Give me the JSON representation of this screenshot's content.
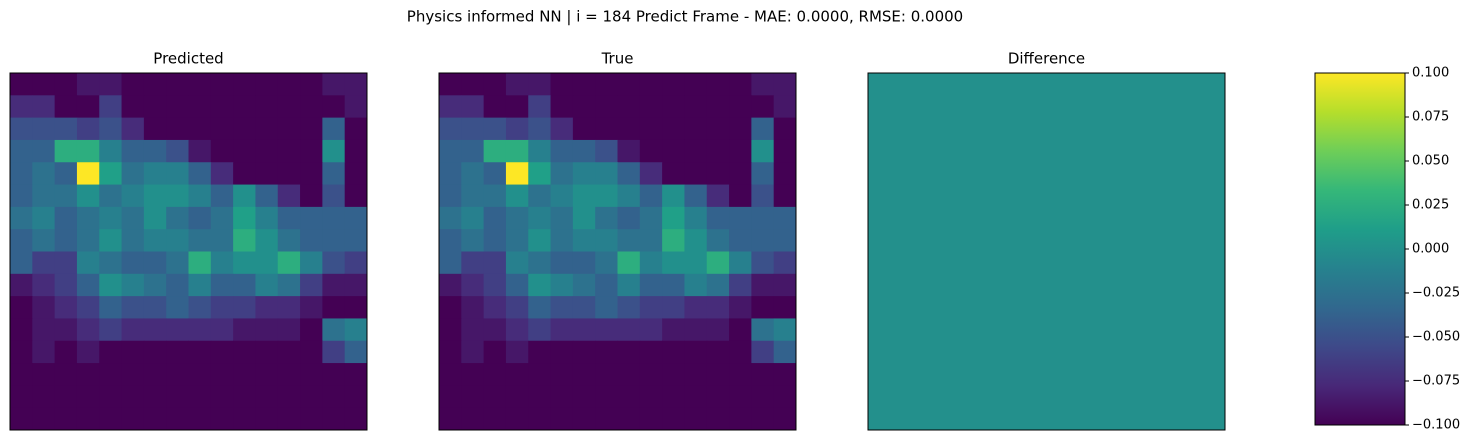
{
  "suptitle": "Physics informed NN | i = 184 Predict Frame - MAE: 0.0000, RMSE: 0.0000",
  "chart_data": [
    {
      "type": "heatmap",
      "title": "Predicted",
      "colormap": "viridis",
      "values": [
        [
          0.05,
          0.05,
          0.05,
          0.1,
          0.1,
          0.05,
          0.05,
          0.05,
          0.05,
          0.05,
          0.05,
          0.05,
          0.05,
          0.05,
          0.1,
          0.1
        ],
        [
          0.15,
          0.15,
          0.05,
          0.05,
          0.2,
          0.05,
          0.05,
          0.05,
          0.05,
          0.05,
          0.05,
          0.05,
          0.05,
          0.05,
          0.05,
          0.1
        ],
        [
          0.25,
          0.25,
          0.25,
          0.2,
          0.25,
          0.15,
          0.05,
          0.05,
          0.05,
          0.05,
          0.05,
          0.05,
          0.05,
          0.05,
          0.3,
          0.05
        ],
        [
          0.3,
          0.3,
          0.55,
          0.55,
          0.4,
          0.3,
          0.3,
          0.25,
          0.1,
          0.05,
          0.05,
          0.05,
          0.05,
          0.05,
          0.45,
          0.05
        ],
        [
          0.3,
          0.35,
          0.3,
          0.85,
          0.5,
          0.35,
          0.4,
          0.4,
          0.3,
          0.15,
          0.05,
          0.05,
          0.05,
          0.05,
          0.3,
          0.05
        ],
        [
          0.3,
          0.35,
          0.35,
          0.45,
          0.35,
          0.4,
          0.45,
          0.45,
          0.4,
          0.3,
          0.45,
          0.3,
          0.15,
          0.05,
          0.25,
          0.05
        ],
        [
          0.35,
          0.4,
          0.3,
          0.35,
          0.4,
          0.35,
          0.45,
          0.35,
          0.3,
          0.35,
          0.5,
          0.4,
          0.3,
          0.3,
          0.3,
          0.3
        ],
        [
          0.3,
          0.35,
          0.3,
          0.35,
          0.45,
          0.35,
          0.4,
          0.4,
          0.35,
          0.35,
          0.55,
          0.45,
          0.35,
          0.3,
          0.3,
          0.3
        ],
        [
          0.3,
          0.2,
          0.2,
          0.4,
          0.35,
          0.3,
          0.3,
          0.35,
          0.55,
          0.4,
          0.45,
          0.45,
          0.55,
          0.4,
          0.25,
          0.2
        ],
        [
          0.1,
          0.15,
          0.2,
          0.3,
          0.45,
          0.4,
          0.35,
          0.3,
          0.4,
          0.3,
          0.3,
          0.4,
          0.35,
          0.2,
          0.1,
          0.1
        ],
        [
          0.05,
          0.1,
          0.15,
          0.2,
          0.3,
          0.25,
          0.25,
          0.3,
          0.25,
          0.2,
          0.2,
          0.15,
          0.15,
          0.1,
          0.05,
          0.05
        ],
        [
          0.05,
          0.1,
          0.1,
          0.15,
          0.2,
          0.15,
          0.15,
          0.15,
          0.15,
          0.15,
          0.1,
          0.1,
          0.1,
          0.05,
          0.35,
          0.4
        ],
        [
          0.05,
          0.1,
          0.05,
          0.1,
          0.05,
          0.05,
          0.05,
          0.05,
          0.05,
          0.05,
          0.05,
          0.05,
          0.05,
          0.05,
          0.2,
          0.3
        ],
        [
          0.05,
          0.05,
          0.05,
          0.05,
          0.05,
          0.05,
          0.05,
          0.05,
          0.05,
          0.05,
          0.05,
          0.05,
          0.05,
          0.05,
          0.05,
          0.05
        ],
        [
          0.05,
          0.05,
          0.05,
          0.05,
          0.05,
          0.05,
          0.05,
          0.05,
          0.05,
          0.05,
          0.05,
          0.05,
          0.05,
          0.05,
          0.05,
          0.05
        ],
        [
          0.05,
          0.05,
          0.05,
          0.05,
          0.05,
          0.05,
          0.05,
          0.05,
          0.05,
          0.05,
          0.05,
          0.05,
          0.05,
          0.05,
          0.05,
          0.05
        ]
      ]
    },
    {
      "type": "heatmap",
      "title": "True",
      "colormap": "viridis",
      "values": [
        [
          0.05,
          0.05,
          0.05,
          0.1,
          0.1,
          0.05,
          0.05,
          0.05,
          0.05,
          0.05,
          0.05,
          0.05,
          0.05,
          0.05,
          0.1,
          0.1
        ],
        [
          0.15,
          0.15,
          0.05,
          0.05,
          0.2,
          0.05,
          0.05,
          0.05,
          0.05,
          0.05,
          0.05,
          0.05,
          0.05,
          0.05,
          0.05,
          0.1
        ],
        [
          0.25,
          0.25,
          0.25,
          0.2,
          0.25,
          0.15,
          0.05,
          0.05,
          0.05,
          0.05,
          0.05,
          0.05,
          0.05,
          0.05,
          0.3,
          0.05
        ],
        [
          0.3,
          0.3,
          0.55,
          0.55,
          0.4,
          0.3,
          0.3,
          0.25,
          0.1,
          0.05,
          0.05,
          0.05,
          0.05,
          0.05,
          0.45,
          0.05
        ],
        [
          0.3,
          0.35,
          0.3,
          0.85,
          0.5,
          0.35,
          0.4,
          0.4,
          0.3,
          0.15,
          0.05,
          0.05,
          0.05,
          0.05,
          0.3,
          0.05
        ],
        [
          0.3,
          0.35,
          0.35,
          0.45,
          0.35,
          0.4,
          0.45,
          0.45,
          0.4,
          0.3,
          0.45,
          0.3,
          0.15,
          0.05,
          0.25,
          0.05
        ],
        [
          0.35,
          0.4,
          0.3,
          0.35,
          0.4,
          0.35,
          0.45,
          0.35,
          0.3,
          0.35,
          0.5,
          0.4,
          0.3,
          0.3,
          0.3,
          0.3
        ],
        [
          0.3,
          0.35,
          0.3,
          0.35,
          0.45,
          0.35,
          0.4,
          0.4,
          0.35,
          0.35,
          0.55,
          0.45,
          0.35,
          0.3,
          0.3,
          0.3
        ],
        [
          0.3,
          0.2,
          0.2,
          0.4,
          0.35,
          0.3,
          0.3,
          0.35,
          0.55,
          0.4,
          0.45,
          0.45,
          0.55,
          0.4,
          0.25,
          0.2
        ],
        [
          0.1,
          0.15,
          0.2,
          0.3,
          0.45,
          0.4,
          0.35,
          0.3,
          0.4,
          0.3,
          0.3,
          0.4,
          0.35,
          0.2,
          0.1,
          0.1
        ],
        [
          0.05,
          0.1,
          0.15,
          0.2,
          0.3,
          0.25,
          0.25,
          0.3,
          0.25,
          0.2,
          0.2,
          0.15,
          0.15,
          0.1,
          0.05,
          0.05
        ],
        [
          0.05,
          0.1,
          0.1,
          0.15,
          0.2,
          0.15,
          0.15,
          0.15,
          0.15,
          0.15,
          0.1,
          0.1,
          0.1,
          0.05,
          0.35,
          0.4
        ],
        [
          0.05,
          0.1,
          0.05,
          0.1,
          0.05,
          0.05,
          0.05,
          0.05,
          0.05,
          0.05,
          0.05,
          0.05,
          0.05,
          0.05,
          0.2,
          0.3
        ],
        [
          0.05,
          0.05,
          0.05,
          0.05,
          0.05,
          0.05,
          0.05,
          0.05,
          0.05,
          0.05,
          0.05,
          0.05,
          0.05,
          0.05,
          0.05,
          0.05
        ],
        [
          0.05,
          0.05,
          0.05,
          0.05,
          0.05,
          0.05,
          0.05,
          0.05,
          0.05,
          0.05,
          0.05,
          0.05,
          0.05,
          0.05,
          0.05,
          0.05
        ],
        [
          0.05,
          0.05,
          0.05,
          0.05,
          0.05,
          0.05,
          0.05,
          0.05,
          0.05,
          0.05,
          0.05,
          0.05,
          0.05,
          0.05,
          0.05,
          0.05
        ]
      ]
    },
    {
      "type": "heatmap",
      "title": "Difference",
      "colormap": "viridis",
      "values": [
        [
          0
        ]
      ],
      "clim": [
        -0.1,
        0.1
      ],
      "colorbar_ticks": [
        {
          "value": 0.1,
          "label": "0.100"
        },
        {
          "value": 0.075,
          "label": "0.075"
        },
        {
          "value": 0.05,
          "label": "0.050"
        },
        {
          "value": 0.025,
          "label": "0.025"
        },
        {
          "value": 0,
          "label": "0.000"
        },
        {
          "value": -0.025,
          "label": "−0.025"
        },
        {
          "value": -0.05,
          "label": "−0.050"
        },
        {
          "value": -0.075,
          "label": "−0.075"
        },
        {
          "value": -0.1,
          "label": "−0.100"
        }
      ]
    }
  ]
}
